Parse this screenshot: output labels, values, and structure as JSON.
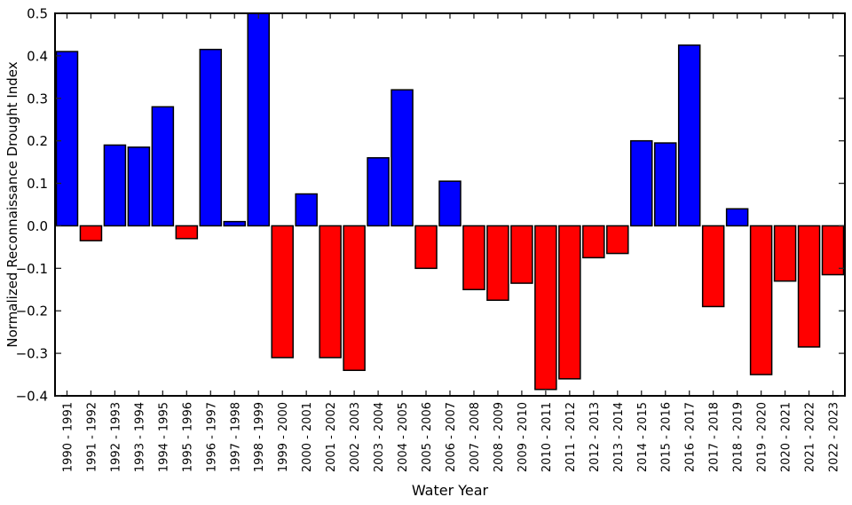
{
  "figure": {
    "background": "#ffffff"
  },
  "chart_data": {
    "type": "bar",
    "title": "",
    "xlabel": "Water Year",
    "ylabel": "Normalized Reconnaissance Drought Index",
    "ylim": [
      -0.4,
      0.5
    ],
    "grid": false,
    "legend": "none",
    "tick_direction": "in",
    "colors": {
      "positive": "#0000ff",
      "negative": "#ff0000",
      "edge": "#000000",
      "spine": "#000000",
      "tick": "#262626"
    },
    "categories": [
      "1990 - 1991",
      "1991 - 1992",
      "1992 - 1993",
      "1993 - 1994",
      "1994 - 1995",
      "1995 - 1996",
      "1996 - 1997",
      "1997 - 1998",
      "1998 - 1999",
      "1999 - 2000",
      "2000 - 2001",
      "2001 - 2002",
      "2002 - 2003",
      "2003 - 2004",
      "2004 - 2005",
      "2005 - 2006",
      "2006 - 2007",
      "2007 - 2008",
      "2008 - 2009",
      "2009 - 2010",
      "2010 - 2011",
      "2011 - 2012",
      "2012 - 2013",
      "2013 - 2014",
      "2014 - 2015",
      "2015 - 2016",
      "2016 - 2017",
      "2017 - 2018",
      "2018 - 2019",
      "2019 - 2020",
      "2020 - 2021",
      "2021 - 2022",
      "2022 - 2023"
    ],
    "values": [
      0.41,
      -0.035,
      0.19,
      0.185,
      0.28,
      -0.03,
      0.415,
      0.01,
      0.5,
      -0.31,
      0.075,
      -0.31,
      -0.34,
      0.16,
      0.32,
      -0.1,
      0.105,
      -0.15,
      -0.175,
      -0.135,
      -0.385,
      -0.36,
      -0.075,
      -0.065,
      0.2,
      0.195,
      0.425,
      -0.19,
      0.04,
      -0.35,
      -0.13,
      -0.285,
      -0.115
    ],
    "yticks": [
      {
        "value": 0.5,
        "label": "0.5"
      },
      {
        "value": 0.4,
        "label": "0.4"
      },
      {
        "value": 0.3,
        "label": "0.3"
      },
      {
        "value": 0.2,
        "label": "0.2"
      },
      {
        "value": 0.1,
        "label": "0.1"
      },
      {
        "value": 0.0,
        "label": "0.0"
      },
      {
        "value": -0.1,
        "label": "−0.1"
      },
      {
        "value": -0.2,
        "label": "−0.2"
      },
      {
        "value": -0.3,
        "label": "−0.3"
      },
      {
        "value": -0.4,
        "label": "−0.4"
      }
    ]
  }
}
